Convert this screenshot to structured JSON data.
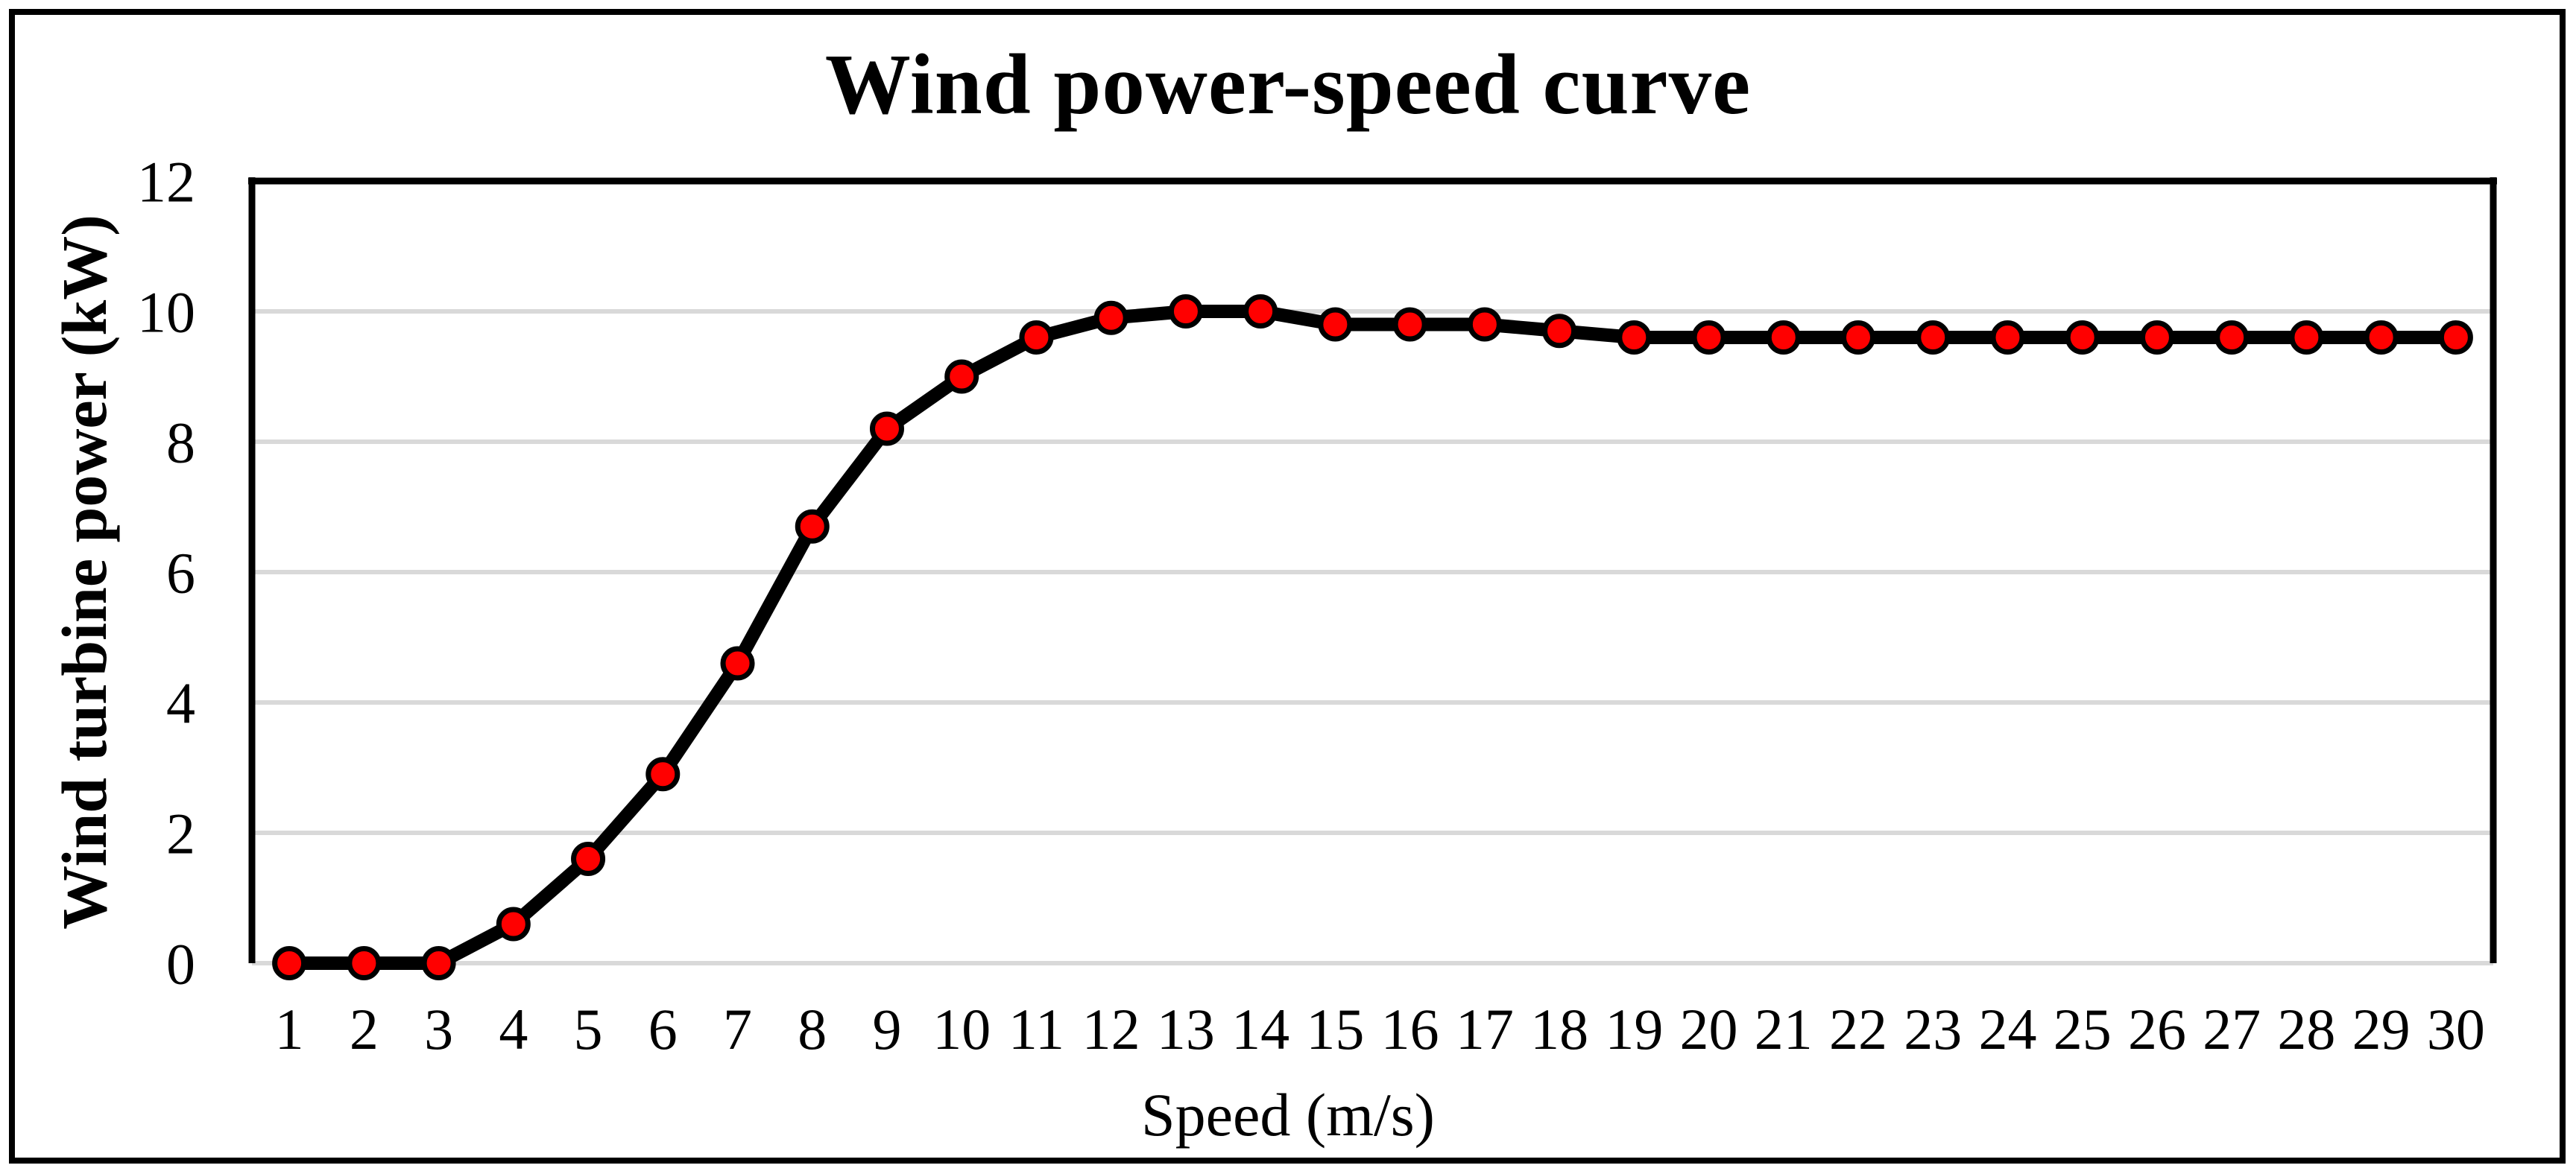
{
  "chart_data": {
    "type": "line",
    "title": "Wind power-speed curve",
    "xlabel": "Speed (m/s)",
    "ylabel": "Wind turbine power (kW)",
    "x": [
      1,
      2,
      3,
      4,
      5,
      6,
      7,
      8,
      9,
      10,
      11,
      12,
      13,
      14,
      15,
      16,
      17,
      18,
      19,
      20,
      21,
      22,
      23,
      24,
      25,
      26,
      27,
      28,
      29,
      30
    ],
    "values": [
      0,
      0,
      0,
      0.6,
      1.6,
      2.9,
      4.6,
      6.7,
      8.2,
      9.0,
      9.6,
      9.9,
      10.0,
      10.0,
      9.8,
      9.8,
      9.8,
      9.7,
      9.6,
      9.6,
      9.6,
      9.6,
      9.6,
      9.6,
      9.6,
      9.6,
      9.6,
      9.6,
      9.6,
      9.6
    ],
    "ylim": [
      0,
      12
    ],
    "yticks": [
      0,
      2,
      4,
      6,
      8,
      10,
      12
    ],
    "grid": "horizontal",
    "legend": "none",
    "style": {
      "line_color": "#000000",
      "marker_fill": "#ff0000",
      "marker_stroke": "#000000",
      "gridline_color": "#d9d9d9",
      "axis_color": "#000000",
      "background": "#ffffff",
      "frame_color": "#000000"
    }
  }
}
